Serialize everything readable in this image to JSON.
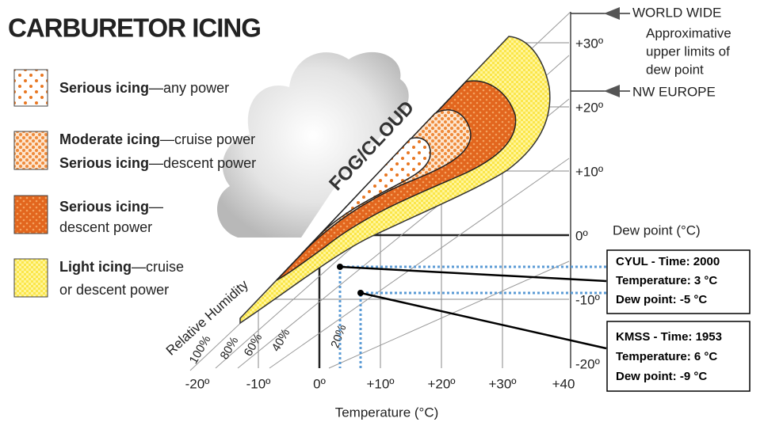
{
  "title": "CARBURETOR ICING",
  "legend": [
    {
      "lines": [
        {
          "bold": "Serious icing",
          "rest": "—any power"
        }
      ]
    },
    {
      "lines": [
        {
          "bold": "Moderate icing",
          "rest": "—cruise power"
        },
        {
          "bold": "Serious icing",
          "rest": "—descent power"
        }
      ]
    },
    {
      "lines": [
        {
          "bold": "Serious icing",
          "rest": "—"
        },
        {
          "rest": "descent power"
        }
      ]
    },
    {
      "lines": [
        {
          "bold": "Light icing",
          "rest": "—cruise"
        },
        {
          "rest": "or descent power"
        }
      ]
    }
  ],
  "fog_label": "FOG/CLOUD",
  "limits": {
    "world_wide": "WORLD WIDE",
    "note": [
      "Approximative",
      "upper limits of",
      "dew point"
    ],
    "nw_europe": "NW EUROPE"
  },
  "dew_axis": {
    "ticks": [
      "+30º",
      "+20º",
      "+10º",
      "0º",
      "-10º",
      "-20º"
    ],
    "label": "Dew point  (°C)"
  },
  "temp_axis": {
    "ticks": [
      "-20º",
      "-10º",
      "0º",
      "+10º",
      "+20º",
      "+30º",
      "+40"
    ],
    "label": "Temperature (°C)"
  },
  "humidity": {
    "label": "Relative Humidity",
    "ticks": [
      "100%",
      "80%",
      "60%",
      "40%",
      "20%"
    ]
  },
  "stations": [
    {
      "lines": [
        "CYUL - Time: 2000",
        "Temperature: 3 °C",
        "Dew point: -5 °C"
      ]
    },
    {
      "lines": [
        "KMSS - Time: 1953",
        "Temperature: 6 °C",
        "Dew point: -9 °C"
      ]
    }
  ]
}
